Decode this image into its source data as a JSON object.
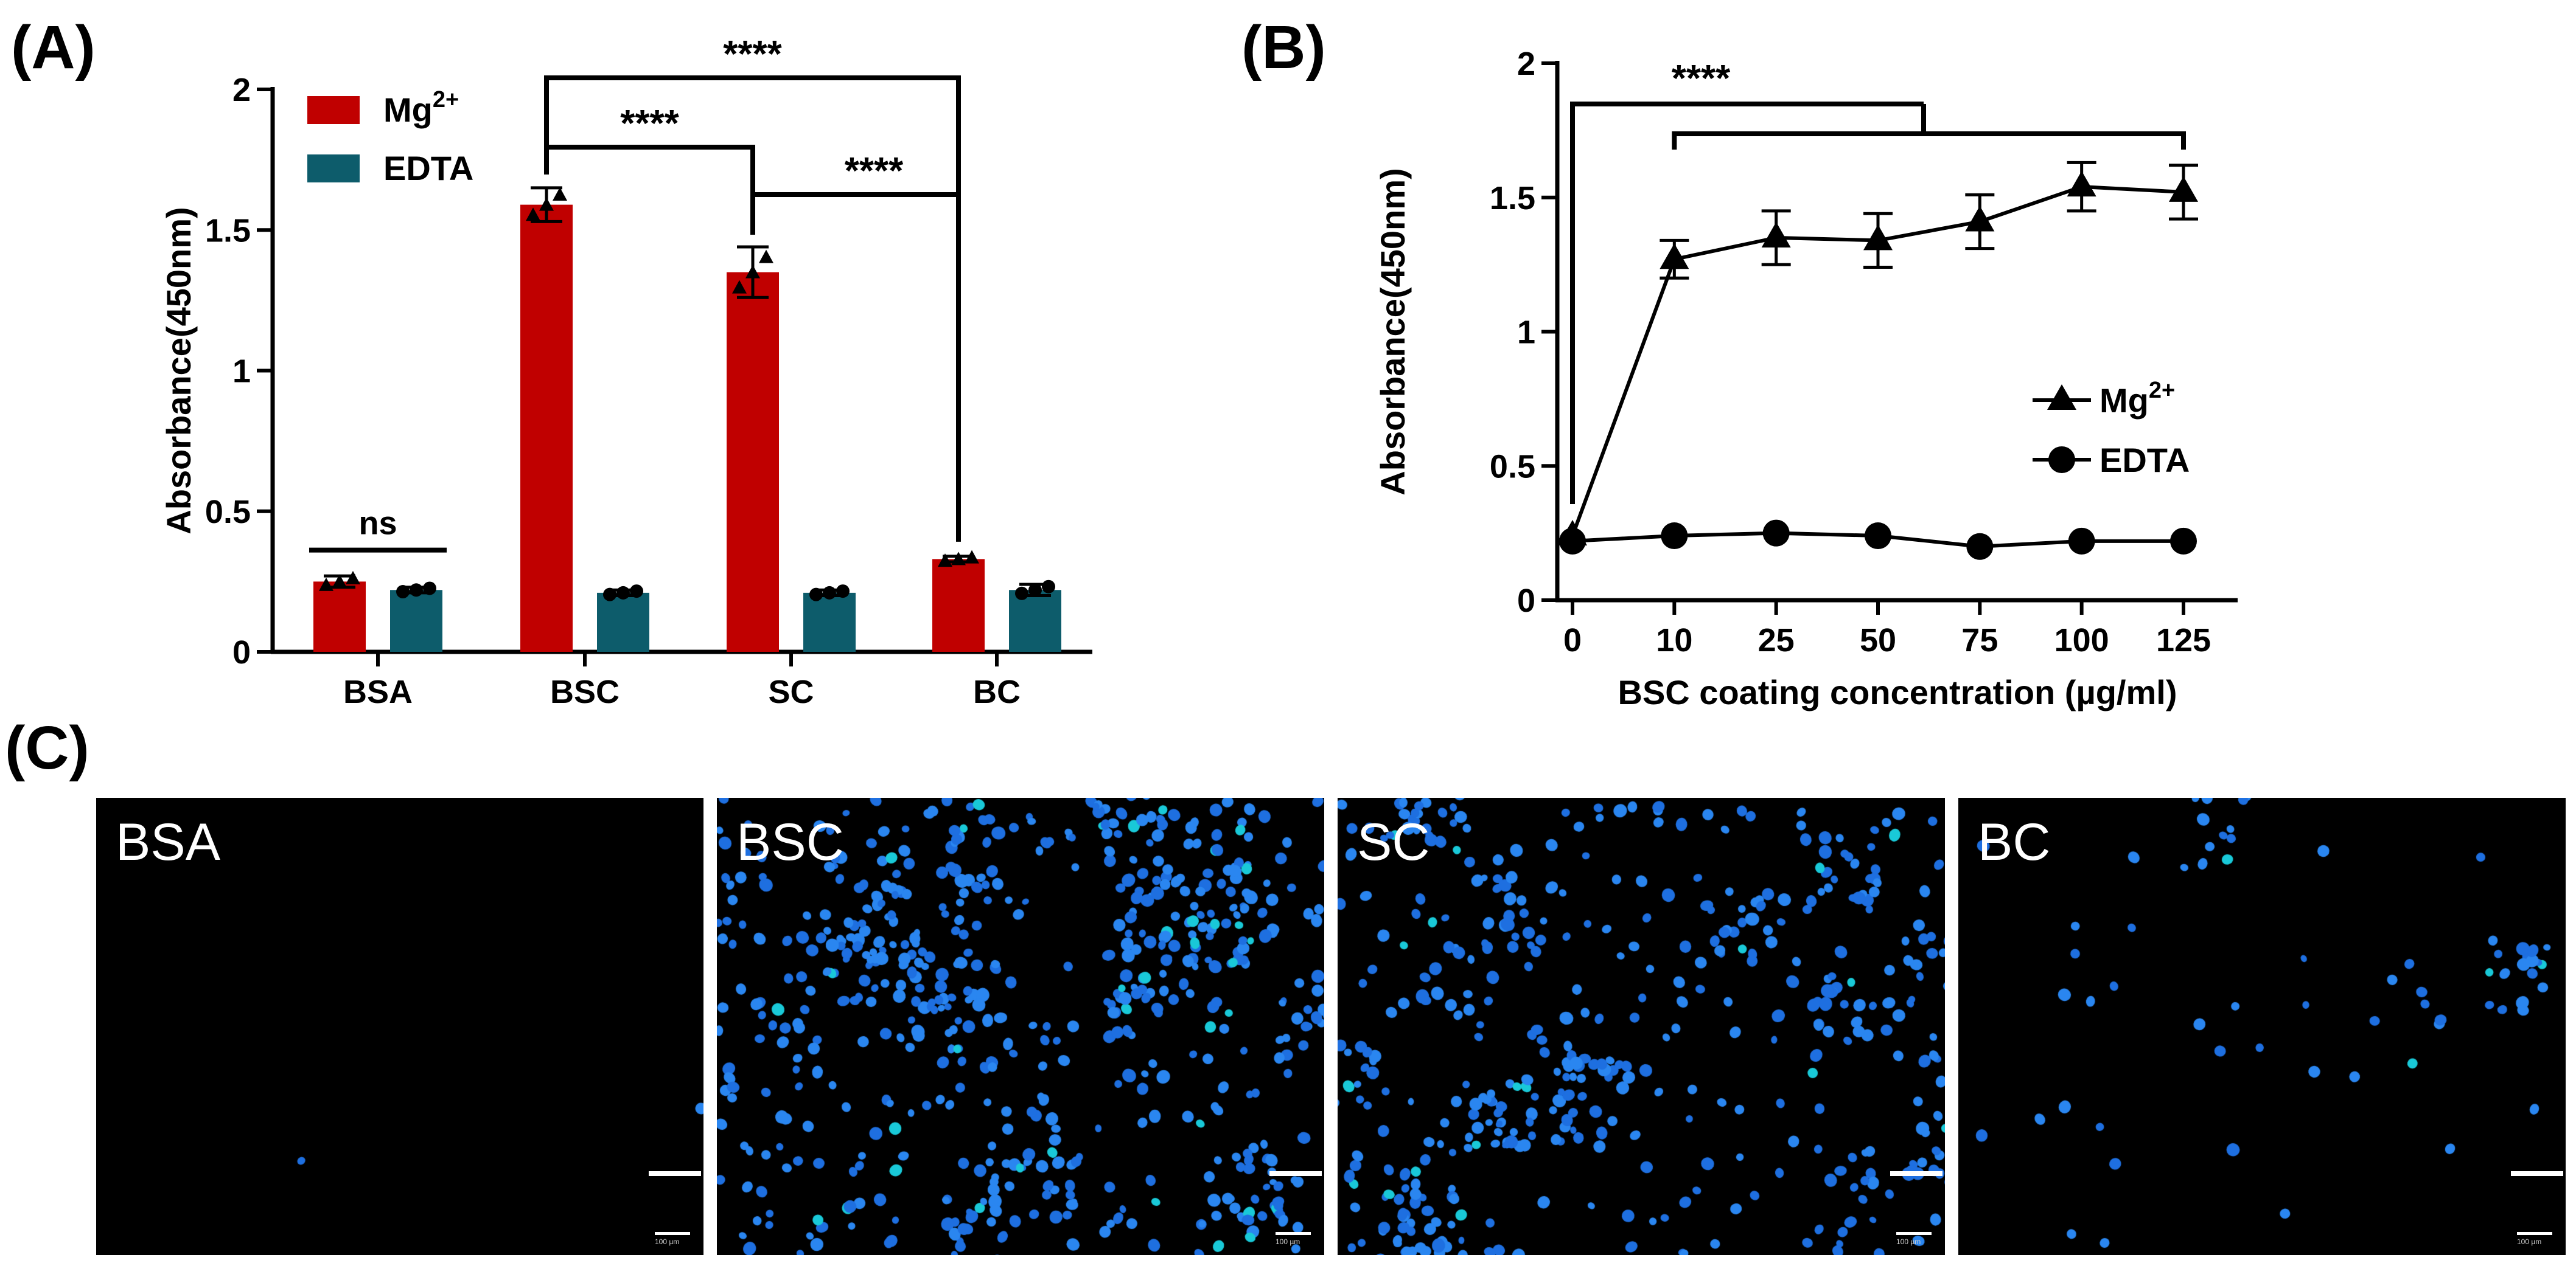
{
  "panels": {
    "a": "(A)",
    "b": "(B)",
    "c": "(C)"
  },
  "colors": {
    "mg": "#c00000",
    "edta": "#0d5c6b",
    "axis": "#000000",
    "nuclei": "#1e6fe0"
  },
  "chart_data": [
    {
      "type": "bar",
      "ylabel": "Absorbance(450nm)",
      "ylim": [
        0,
        2
      ],
      "yticks": [
        0,
        0.5,
        1,
        1.5,
        2
      ],
      "ytick_labels": [
        "0",
        "0.5",
        "1",
        "1.5",
        "2"
      ],
      "categories": [
        "BSA",
        "BSC",
        "SC",
        "BC"
      ],
      "series": [
        {
          "name": "Mg2+",
          "legend_base": "Mg",
          "legend_sup": "2+",
          "values": [
            0.25,
            1.59,
            1.35,
            0.33
          ],
          "errors": [
            0.02,
            0.06,
            0.09,
            0.01
          ]
        },
        {
          "name": "EDTA",
          "legend_base": "EDTA",
          "legend_sup": "",
          "values": [
            0.22,
            0.21,
            0.21,
            0.22
          ],
          "errors": [
            0.01,
            0.01,
            0.01,
            0.02
          ]
        }
      ],
      "significance": [
        {
          "label": "****",
          "from": "BSC",
          "to": "BC"
        },
        {
          "label": "****",
          "from": "BSC",
          "to": "SC"
        },
        {
          "label": "****",
          "from": "SC",
          "to": "BC"
        },
        {
          "label": "ns",
          "from": "BSA Mg2+",
          "to": "BSA EDTA"
        }
      ]
    },
    {
      "type": "line",
      "xlabel": "BSC coating concentration (µg/ml)",
      "ylabel": "Absorbance(450nm)",
      "ylim": [
        0,
        2
      ],
      "yticks": [
        0,
        0.5,
        1,
        1.5,
        2
      ],
      "ytick_labels": [
        "0",
        "0.5",
        "1",
        "1.5",
        "2"
      ],
      "x": [
        "0",
        "10",
        "25",
        "50",
        "75",
        "100",
        "125"
      ],
      "series": [
        {
          "name": "Mg2+",
          "legend_base": "Mg",
          "legend_sup": "2+",
          "marker": "triangle",
          "values": [
            0.24,
            1.27,
            1.35,
            1.34,
            1.41,
            1.54,
            1.52
          ],
          "errors": [
            0,
            0.07,
            0.1,
            0.1,
            0.1,
            0.09,
            0.1
          ]
        },
        {
          "name": "EDTA",
          "legend_base": "EDTA",
          "legend_sup": "",
          "marker": "circle",
          "values": [
            0.22,
            0.24,
            0.25,
            0.24,
            0.2,
            0.22,
            0.22
          ],
          "errors": [
            0,
            0,
            0,
            0,
            0,
            0,
            0
          ]
        }
      ],
      "significance": [
        {
          "label": "****",
          "from": "0",
          "to": "10-125"
        }
      ]
    }
  ],
  "micrographs": [
    {
      "label": "BSA",
      "density": 2,
      "scale_text": "100 µm"
    },
    {
      "label": "BSC",
      "density": 620,
      "scale_text": "100 µm"
    },
    {
      "label": "SC",
      "density": 470,
      "scale_text": "100 µm"
    },
    {
      "label": "BC",
      "density": 70,
      "scale_text": "100 µm"
    }
  ]
}
